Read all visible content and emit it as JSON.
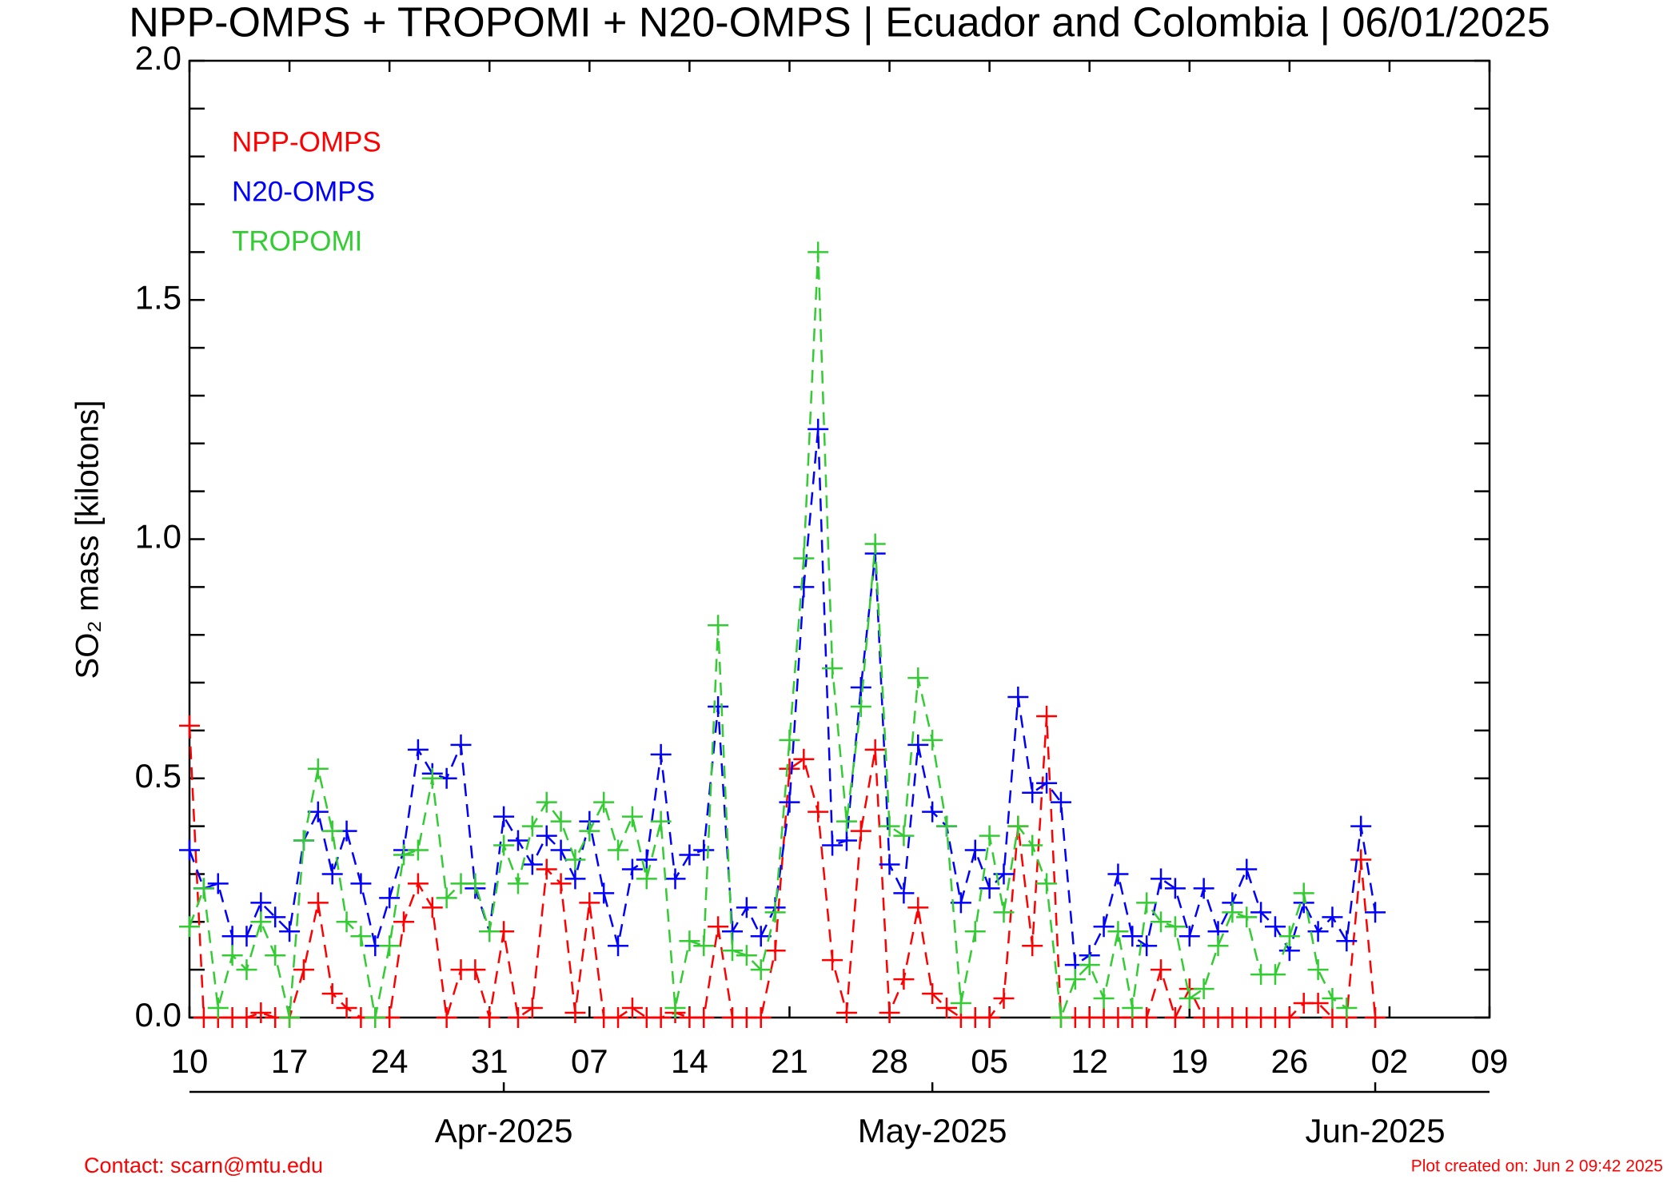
{
  "chart_data": {
    "type": "line",
    "title": "NPP-OMPS + TROPOMI + N20-OMPS | Ecuador and Colombia | 06/01/2025",
    "y_label": "SO₂ mass [kilotons]",
    "x": [
      "2025-03-10",
      "2025-03-11",
      "2025-03-12",
      "2025-03-13",
      "2025-03-14",
      "2025-03-15",
      "2025-03-16",
      "2025-03-17",
      "2025-03-18",
      "2025-03-19",
      "2025-03-20",
      "2025-03-21",
      "2025-03-22",
      "2025-03-23",
      "2025-03-24",
      "2025-03-25",
      "2025-03-26",
      "2025-03-27",
      "2025-03-28",
      "2025-03-29",
      "2025-03-30",
      "2025-03-31",
      "2025-04-01",
      "2025-04-02",
      "2025-04-03",
      "2025-04-04",
      "2025-04-05",
      "2025-04-06",
      "2025-04-07",
      "2025-04-08",
      "2025-04-09",
      "2025-04-10",
      "2025-04-11",
      "2025-04-12",
      "2025-04-13",
      "2025-04-14",
      "2025-04-15",
      "2025-04-16",
      "2025-04-17",
      "2025-04-18",
      "2025-04-19",
      "2025-04-20",
      "2025-04-21",
      "2025-04-22",
      "2025-04-23",
      "2025-04-24",
      "2025-04-25",
      "2025-04-26",
      "2025-04-27",
      "2025-04-28",
      "2025-04-29",
      "2025-04-30",
      "2025-05-01",
      "2025-05-02",
      "2025-05-03",
      "2025-05-04",
      "2025-05-05",
      "2025-05-06",
      "2025-05-07",
      "2025-05-08",
      "2025-05-09",
      "2025-05-10",
      "2025-05-11",
      "2025-05-12",
      "2025-05-13",
      "2025-05-14",
      "2025-05-15",
      "2025-05-16",
      "2025-05-17",
      "2025-05-18",
      "2025-05-19",
      "2025-05-20",
      "2025-05-21",
      "2025-05-22",
      "2025-05-23",
      "2025-05-24",
      "2025-05-25",
      "2025-05-26",
      "2025-05-27",
      "2025-05-28",
      "2025-05-29",
      "2025-05-30",
      "2025-05-31",
      "2025-06-01"
    ],
    "series": [
      {
        "name": "NPP-OMPS",
        "color": "#ff0000",
        "values": [
          0.61,
          0,
          0,
          0,
          0,
          0.01,
          0,
          0,
          0.1,
          0.24,
          0.05,
          0.02,
          0,
          0,
          0,
          0.2,
          0.28,
          0.23,
          0,
          0.1,
          0.1,
          0,
          0.18,
          0,
          0.02,
          0.31,
          0.28,
          0.01,
          0.24,
          0,
          0,
          0.02,
          0,
          0,
          0.01,
          0,
          0,
          0.19,
          0,
          0,
          0,
          0.14,
          0.52,
          0.54,
          0.43,
          0.12,
          0.01,
          0.39,
          0.56,
          0.01,
          0.08,
          0.23,
          0.05,
          0.02,
          0,
          0,
          0,
          0.04,
          0.4,
          0.15,
          0.63,
          0,
          0,
          0,
          0,
          0,
          0,
          0,
          0.1,
          0,
          0.06,
          0,
          0,
          0,
          0,
          0,
          0,
          0,
          0.03,
          0.03,
          0,
          0,
          0.33,
          0
        ]
      },
      {
        "name": "N20-OMPS",
        "color": "#0000ff",
        "values": [
          0.35,
          0.27,
          0.28,
          0.17,
          0.17,
          0.24,
          0.21,
          0.18,
          0.37,
          0.43,
          0.3,
          0.39,
          0.28,
          0.15,
          0.25,
          0.35,
          0.56,
          0.51,
          0.5,
          0.57,
          0.27,
          0.18,
          0.42,
          0.37,
          0.32,
          0.38,
          0.35,
          0.29,
          0.41,
          0.26,
          0.15,
          0.31,
          0.33,
          0.55,
          0.29,
          0.34,
          0.35,
          0.65,
          0.18,
          0.23,
          0.17,
          0.23,
          0.45,
          0.9,
          1.23,
          0.36,
          0.37,
          0.69,
          0.97,
          0.32,
          0.26,
          0.57,
          0.43,
          0.4,
          0.24,
          0.35,
          0.27,
          0.3,
          0.67,
          0.47,
          0.49,
          0.45,
          0.11,
          0.13,
          0.19,
          0.3,
          0.17,
          0.15,
          0.29,
          0.27,
          0.17,
          0.27,
          0.18,
          0.24,
          0.31,
          0.22,
          0.19,
          0.14,
          0.24,
          0.18,
          0.21,
          0.16,
          0.4,
          0.22
        ]
      },
      {
        "name": "TROPOMI",
        "color": "#33cc33",
        "values": [
          0.19,
          0.27,
          0.02,
          0.13,
          0.1,
          0.2,
          0.13,
          0,
          0.37,
          0.52,
          0.39,
          0.2,
          0.17,
          0,
          0.15,
          0.34,
          0.35,
          0.5,
          0.25,
          0.28,
          0.28,
          0.18,
          0.36,
          0.28,
          0.4,
          0.45,
          0.41,
          0.33,
          0.39,
          0.45,
          0.35,
          0.42,
          0.29,
          0.41,
          0.02,
          0.16,
          0.15,
          0.82,
          0.14,
          0.13,
          0.1,
          0.22,
          0.58,
          0.96,
          1.6,
          0.73,
          0.41,
          0.65,
          0.99,
          0.4,
          0.38,
          0.71,
          0.58,
          0.4,
          0.03,
          0.18,
          0.38,
          0.22,
          0.4,
          0.36,
          0.28,
          0,
          0.08,
          0.11,
          0.04,
          0.18,
          0.02,
          0.24,
          0.2,
          0.19,
          0.04,
          0.06,
          0.15,
          0.22,
          0.21,
          0.09,
          0.09,
          0.17,
          0.26,
          0.1,
          0.04,
          0.02,
          null,
          null
        ]
      }
    ],
    "xlim": [
      "2025-03-10",
      "2025-06-09"
    ],
    "xticks": [
      {
        "value": "2025-03-10",
        "label": "10"
      },
      {
        "value": "2025-03-17",
        "label": "17"
      },
      {
        "value": "2025-03-24",
        "label": "24"
      },
      {
        "value": "2025-03-31",
        "label": "31"
      },
      {
        "value": "2025-04-07",
        "label": "07"
      },
      {
        "value": "2025-04-14",
        "label": "14"
      },
      {
        "value": "2025-04-21",
        "label": "21"
      },
      {
        "value": "2025-04-28",
        "label": "28"
      },
      {
        "value": "2025-05-05",
        "label": "05"
      },
      {
        "value": "2025-05-12",
        "label": "12"
      },
      {
        "value": "2025-05-19",
        "label": "19"
      },
      {
        "value": "2025-05-26",
        "label": "26"
      },
      {
        "value": "2025-06-02",
        "label": "02"
      },
      {
        "value": "2025-06-09",
        "label": "09"
      }
    ],
    "month_ticks": [
      {
        "value": "2025-04-01",
        "label": "Apr-2025"
      },
      {
        "value": "2025-05-01",
        "label": "May-2025"
      },
      {
        "value": "2025-06-01",
        "label": "Jun-2025"
      }
    ],
    "ylim": [
      0,
      2
    ],
    "yticks": [
      {
        "value": 0,
        "label": "0.0"
      },
      {
        "value": 0.5,
        "label": "0.5"
      },
      {
        "value": 1,
        "label": "1.0"
      },
      {
        "value": 1.5,
        "label": "1.5"
      },
      {
        "value": 2,
        "label": "2.0"
      }
    ],
    "y_minor_ticks": [
      0.1,
      0.2,
      0.3,
      0.4,
      0.6,
      0.7,
      0.8,
      0.9,
      1.1,
      1.2,
      1.3,
      1.4,
      1.6,
      1.7,
      1.8,
      1.9
    ],
    "legend": "upper left",
    "marker": "plus",
    "line_style": "dashed",
    "contact": "Contact: scarn@mtu.edu",
    "created": "Plot created on: Jun  2 09:42 2025"
  }
}
